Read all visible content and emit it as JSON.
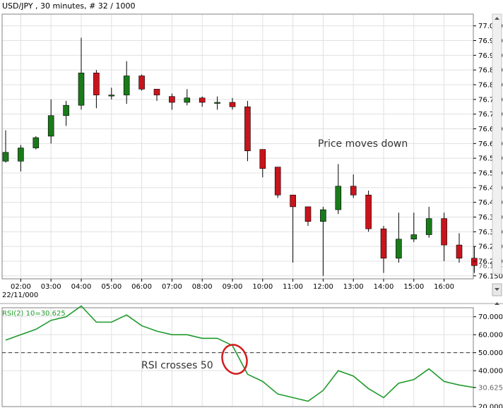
{
  "header": {
    "title": "USD/JPY , 30 minutes, # 32 / 1000"
  },
  "date_label": "22/11/000",
  "annotations": {
    "price": "Price moves down",
    "rsi": "RSI crosses 50"
  },
  "colors": {
    "up": "#1a7a1a",
    "down": "#c8141c",
    "rsi_line": "#1f9a2b",
    "grid": "#e0e0e0",
    "circle": "#d41c1c"
  },
  "chart_data": [
    {
      "type": "candlestick",
      "title": "USD/JPY , 30 minutes, # 32 / 1000",
      "ylim": [
        76.14,
        77.04
      ],
      "y_ticks": [
        "77.000",
        "76.950",
        "76.900",
        "76.850",
        "76.800",
        "76.750",
        "76.700",
        "76.650",
        "76.600",
        "76.550",
        "76.500",
        "76.450",
        "76.400",
        "76.350",
        "76.300",
        "76.250",
        "76.200",
        "76.150"
      ],
      "x_ticks": [
        "02:00",
        "03:00",
        "04:00",
        "05:00",
        "06:00",
        "07:00",
        "08:00",
        "09:00",
        "10:00",
        "11:00",
        "12:00",
        "13:00",
        "14:00",
        "15:00",
        "16:00"
      ],
      "x_tick_index": [
        1,
        3,
        5,
        7,
        9,
        11,
        13,
        15,
        17,
        19,
        21,
        23,
        25,
        27,
        29
      ],
      "last_price": "76.184",
      "candles": [
        {
          "o": 76.54,
          "h": 76.645,
          "l": 76.535,
          "c": 76.57
        },
        {
          "o": 76.54,
          "h": 76.595,
          "l": 76.505,
          "c": 76.585
        },
        {
          "o": 76.585,
          "h": 76.625,
          "l": 76.58,
          "c": 76.62
        },
        {
          "o": 76.625,
          "h": 76.75,
          "l": 76.6,
          "c": 76.695
        },
        {
          "o": 76.695,
          "h": 76.745,
          "l": 76.66,
          "c": 76.73
        },
        {
          "o": 76.73,
          "h": 76.96,
          "l": 76.715,
          "c": 76.84
        },
        {
          "o": 76.84,
          "h": 76.85,
          "l": 76.72,
          "c": 76.765
        },
        {
          "o": 76.765,
          "h": 76.79,
          "l": 76.75,
          "c": 76.765
        },
        {
          "o": 76.765,
          "h": 76.88,
          "l": 76.735,
          "c": 76.83
        },
        {
          "o": 76.83,
          "h": 76.835,
          "l": 76.78,
          "c": 76.785
        },
        {
          "o": 76.785,
          "h": 76.785,
          "l": 76.745,
          "c": 76.765
        },
        {
          "o": 76.76,
          "h": 76.77,
          "l": 76.715,
          "c": 76.74
        },
        {
          "o": 76.74,
          "h": 76.785,
          "l": 76.73,
          "c": 76.755
        },
        {
          "o": 76.755,
          "h": 76.76,
          "l": 76.725,
          "c": 76.74
        },
        {
          "o": 76.74,
          "h": 76.76,
          "l": 76.715,
          "c": 76.74
        },
        {
          "o": 76.74,
          "h": 76.755,
          "l": 76.715,
          "c": 76.725
        },
        {
          "o": 76.725,
          "h": 76.745,
          "l": 76.54,
          "c": 76.575
        },
        {
          "o": 76.58,
          "h": 76.58,
          "l": 76.485,
          "c": 76.515
        },
        {
          "o": 76.52,
          "h": 76.52,
          "l": 76.415,
          "c": 76.425
        },
        {
          "o": 76.425,
          "h": 76.425,
          "l": 76.195,
          "c": 76.385
        },
        {
          "o": 76.385,
          "h": 76.385,
          "l": 76.32,
          "c": 76.335
        },
        {
          "o": 76.335,
          "h": 76.385,
          "l": 76.15,
          "c": 76.375
        },
        {
          "o": 76.375,
          "h": 76.53,
          "l": 76.36,
          "c": 76.455
        },
        {
          "o": 76.455,
          "h": 76.495,
          "l": 76.415,
          "c": 76.425
        },
        {
          "o": 76.425,
          "h": 76.44,
          "l": 76.3,
          "c": 76.31
        },
        {
          "o": 76.31,
          "h": 76.32,
          "l": 76.16,
          "c": 76.21
        },
        {
          "o": 76.21,
          "h": 76.365,
          "l": 76.195,
          "c": 76.275
        },
        {
          "o": 76.275,
          "h": 76.365,
          "l": 76.265,
          "c": 76.29
        },
        {
          "o": 76.29,
          "h": 76.385,
          "l": 76.28,
          "c": 76.345
        },
        {
          "o": 76.345,
          "h": 76.365,
          "l": 76.2,
          "c": 76.255
        },
        {
          "o": 76.255,
          "h": 76.295,
          "l": 76.195,
          "c": 76.21
        },
        {
          "o": 76.21,
          "h": 76.25,
          "l": 76.16,
          "c": 76.185
        }
      ]
    },
    {
      "type": "line",
      "title": "RSI(2) 10=30.625",
      "ylim": [
        20,
        75
      ],
      "y_ticks": [
        "70.000",
        "60.000",
        "50.000",
        "40.000",
        "30.625",
        "20.000"
      ],
      "reference_line": 50,
      "series": [
        {
          "values": [
            57,
            60,
            63,
            68,
            70,
            76,
            67,
            67,
            71,
            65,
            62,
            60,
            60,
            58,
            58,
            54,
            38,
            34,
            27,
            25,
            23,
            29,
            40,
            37,
            30,
            25,
            33,
            35,
            41,
            34,
            32,
            30.6
          ]
        }
      ]
    }
  ]
}
